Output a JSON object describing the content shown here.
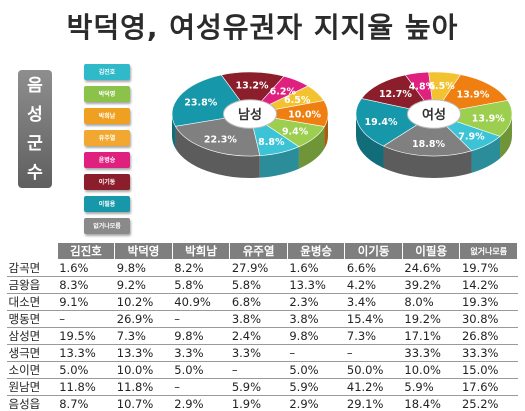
{
  "title": "박덕영, 여성유권자 지지율 높아",
  "region_label": [
    "음",
    "성",
    "군",
    "수"
  ],
  "legend": [
    {
      "name": "김진호",
      "color": "#2fb9c9"
    },
    {
      "name": "박덕영",
      "color": "#8bc34a"
    },
    {
      "name": "박희남",
      "color": "#f0a020"
    },
    {
      "name": "유주열",
      "color": "#f2a830"
    },
    {
      "name": "윤병승",
      "color": "#e0207f"
    },
    {
      "name": "이기동",
      "color": "#8b1e2a"
    },
    {
      "name": "이필용",
      "color": "#1798aa"
    },
    {
      "name": "없거나모름",
      "color": "#8a8a8a"
    }
  ],
  "chart_data": [
    {
      "type": "pie",
      "title": "남성",
      "slices": [
        {
          "label": "13.2%",
          "value": 13.2,
          "color": "#8b1e2a"
        },
        {
          "label": "6.2%",
          "value": 6.2,
          "color": "#e0207f"
        },
        {
          "label": "6.5%",
          "value": 6.5,
          "color": "#f2c230"
        },
        {
          "label": "10.0%",
          "value": 10.0,
          "color": "#f07f12"
        },
        {
          "label": "9.4%",
          "value": 9.4,
          "color": "#9ccf4f"
        },
        {
          "label": "8.8%",
          "value": 8.8,
          "color": "#3cc3d6"
        },
        {
          "label": "22.3%",
          "value": 22.3,
          "color": "#808080"
        },
        {
          "label": "23.8%",
          "value": 23.8,
          "color": "#1798aa"
        }
      ]
    },
    {
      "type": "pie",
      "title": "여성",
      "slices": [
        {
          "label": "4.8%",
          "value": 4.8,
          "color": "#e0207f"
        },
        {
          "label": "6.5%",
          "value": 6.5,
          "color": "#f2c230"
        },
        {
          "label": "13.9%",
          "value": 13.9,
          "color": "#f07f12"
        },
        {
          "label": "13.9%",
          "value": 13.9,
          "color": "#9ccf4f"
        },
        {
          "label": "7.9%",
          "value": 7.9,
          "color": "#3cc3d6"
        },
        {
          "label": "18.8%",
          "value": 18.8,
          "color": "#808080"
        },
        {
          "label": "19.4%",
          "value": 19.4,
          "color": "#1798aa"
        },
        {
          "label": "12.7%",
          "value": 12.7,
          "color": "#8b1e2a"
        }
      ]
    },
    {
      "type": "table",
      "columns": [
        "",
        "김진호",
        "박덕영",
        "박희남",
        "유주열",
        "윤병승",
        "이기동",
        "이필용",
        "없거나모름"
      ],
      "rows": [
        [
          "감곡면",
          "1.6%",
          "9.8%",
          "8.2%",
          "27.9%",
          "1.6%",
          "6.6%",
          "24.6%",
          "19.7%"
        ],
        [
          "금왕읍",
          "8.3%",
          "9.2%",
          "5.8%",
          "5.8%",
          "13.3%",
          "4.2%",
          "39.2%",
          "14.2%"
        ],
        [
          "대소면",
          "9.1%",
          "10.2%",
          "40.9%",
          "6.8%",
          "2.3%",
          "3.4%",
          "8.0%",
          "19.3%"
        ],
        [
          "맹동면",
          "–",
          "26.9%",
          "–",
          "3.8%",
          "3.8%",
          "15.4%",
          "19.2%",
          "30.8%"
        ],
        [
          "삼성면",
          "19.5%",
          "7.3%",
          "9.8%",
          "2.4%",
          "9.8%",
          "7.3%",
          "17.1%",
          "26.8%"
        ],
        [
          "생극면",
          "13.3%",
          "13.3%",
          "3.3%",
          "3.3%",
          "–",
          "–",
          "33.3%",
          "33.3%"
        ],
        [
          "소이면",
          "5.0%",
          "10.0%",
          "5.0%",
          "–",
          "5.0%",
          "50.0%",
          "10.0%",
          "15.0%"
        ],
        [
          "원남면",
          "11.8%",
          "11.8%",
          "–",
          "5.9%",
          "5.9%",
          "41.2%",
          "5.9%",
          "17.6%"
        ],
        [
          "음성읍",
          "8.7%",
          "10.7%",
          "2.9%",
          "1.9%",
          "2.9%",
          "29.1%",
          "18.4%",
          "25.2%"
        ]
      ]
    }
  ]
}
